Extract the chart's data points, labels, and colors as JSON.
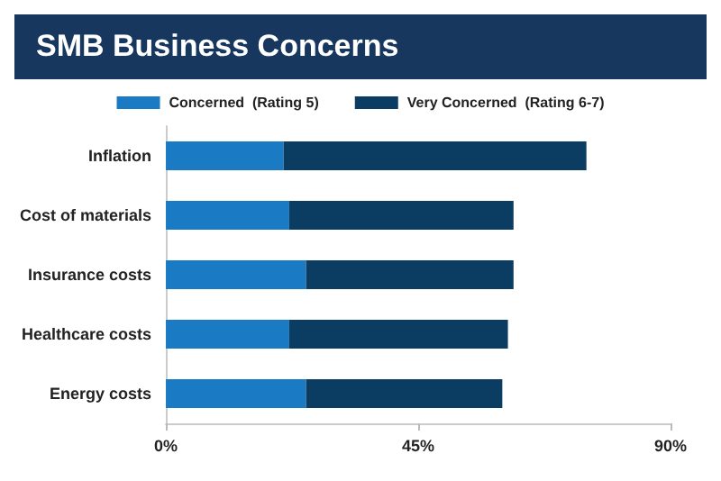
{
  "chart_data": {
    "type": "bar",
    "orientation": "horizontal",
    "stacked": true,
    "title": "SMB Business Concerns",
    "categories": [
      "Inflation",
      "Cost of materials",
      "Insurance costs",
      "Healthcare costs",
      "Energy costs"
    ],
    "series": [
      {
        "name": "Concerned  (Rating 5)",
        "color": "#1a7ac4",
        "values": [
          21,
          22,
          25,
          22,
          25
        ]
      },
      {
        "name": "Very Concerned  (Rating 6-7)",
        "color": "#0b3d63",
        "values": [
          54,
          40,
          37,
          39,
          35
        ]
      }
    ],
    "xlim": [
      0,
      90
    ],
    "xticks": [
      {
        "value": 0,
        "label": "0%"
      },
      {
        "value": 45,
        "label": "45%"
      },
      {
        "value": 90,
        "label": "90%"
      }
    ],
    "grid": false,
    "legend": "top"
  }
}
